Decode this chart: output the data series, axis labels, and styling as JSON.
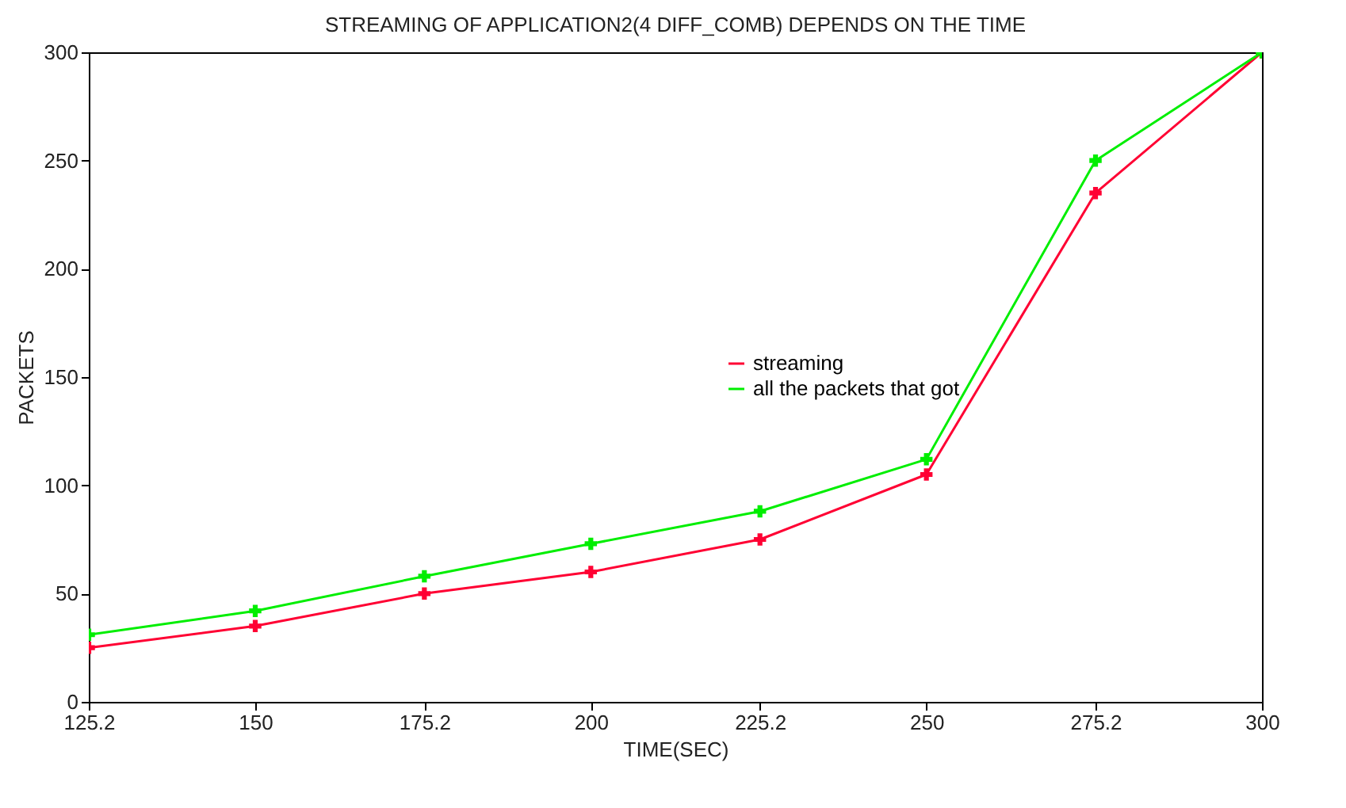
{
  "chart_data": {
    "type": "line",
    "title": "STREAMING OF APPLICATION2(4 DIFF_COMB) DEPENDS ON THE TIME",
    "xlabel": "TIME(SEC)",
    "ylabel": "PACKETS",
    "x": [
      125.2,
      150,
      175.2,
      200,
      225.2,
      250,
      275.2,
      300
    ],
    "series": [
      {
        "name": "streaming",
        "color": "#ff0033",
        "values": [
          25,
          35,
          50,
          60,
          75,
          105,
          235,
          300
        ]
      },
      {
        "name": "all the packets that got",
        "color": "#00ee00",
        "values": [
          31,
          42,
          58,
          73,
          88,
          112,
          250,
          300
        ]
      }
    ],
    "xlim": [
      125.2,
      300
    ],
    "xticks": [
      125.2,
      150,
      175.2,
      200,
      225.2,
      250,
      275.2,
      300
    ],
    "ylim": [
      0,
      300
    ],
    "yticks": [
      0,
      50,
      100,
      150,
      200,
      250,
      300
    ],
    "legend": "top right",
    "marker": "cross",
    "line_style": "solid",
    "grid": false
  }
}
